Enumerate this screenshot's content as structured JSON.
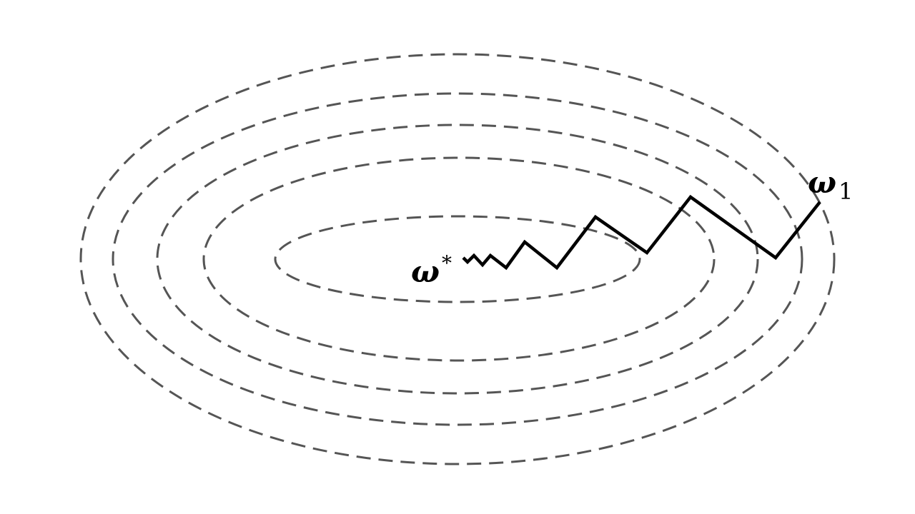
{
  "labels": {
    "start": {
      "symbol": "ω",
      "subscript": "1"
    },
    "optimum": {
      "symbol": "ω",
      "superscript": "*"
    }
  },
  "colors": {
    "contour": "#555555",
    "path": "#000000",
    "background": "#ffffff"
  }
}
